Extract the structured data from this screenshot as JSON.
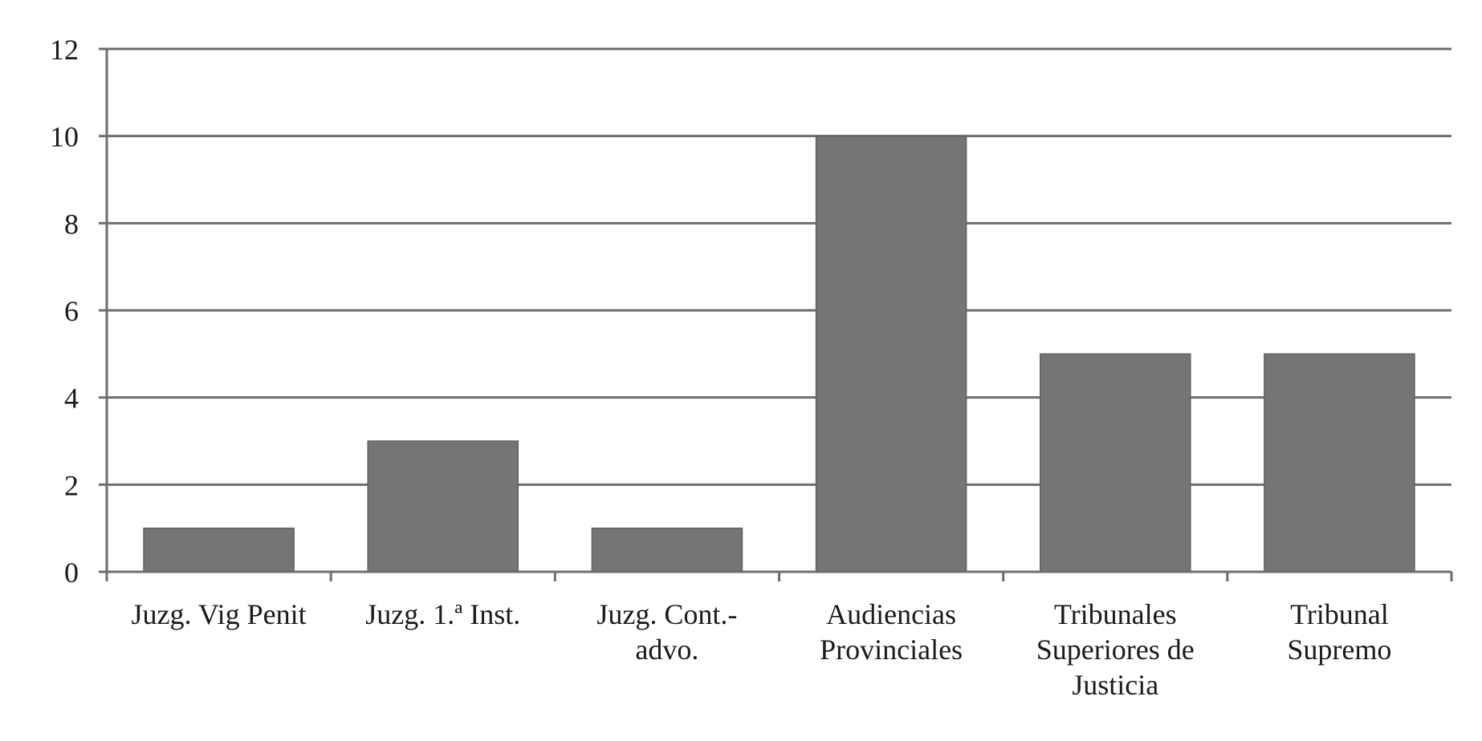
{
  "chart_data": {
    "type": "bar",
    "categories": [
      [
        "Juzg. Vig Penit"
      ],
      [
        "Juzg. 1.ª Inst."
      ],
      [
        "Juzg. Cont.-",
        "advo."
      ],
      [
        "Audiencias",
        "Provinciales"
      ],
      [
        "Tribunales",
        "Superiores de",
        "Justicia"
      ],
      [
        "Tribunal",
        "Supremo"
      ]
    ],
    "values": [
      1,
      3,
      1,
      10,
      5,
      5
    ],
    "title": "",
    "xlabel": "",
    "ylabel": "",
    "ylim": [
      0,
      12
    ],
    "yticks": [
      0,
      2,
      4,
      6,
      8,
      10,
      12
    ],
    "grid": true,
    "legend": "none",
    "colors": {
      "bar": "#757575",
      "bar_edge": "#5f5f5f",
      "grid": "#6e6e6e",
      "axis": "#6e6e6e"
    }
  }
}
